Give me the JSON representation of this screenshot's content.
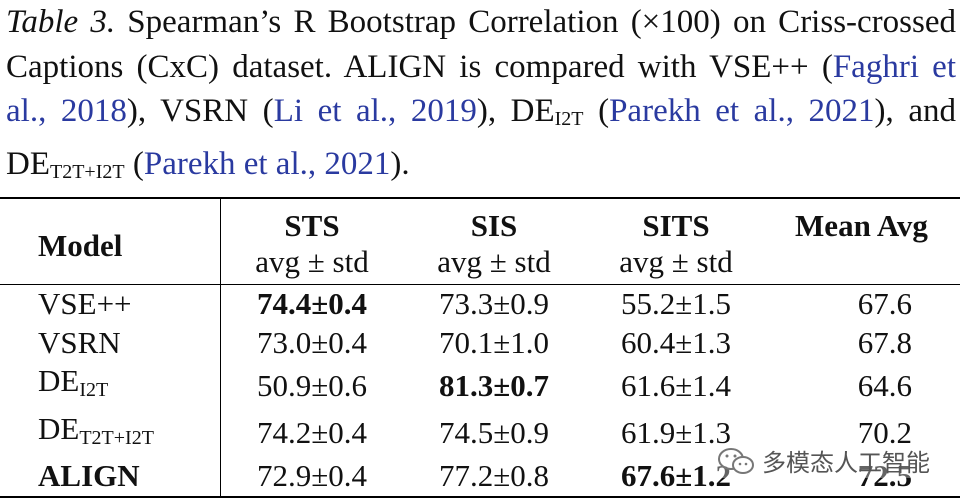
{
  "caption": {
    "label": "Table 3.",
    "text1": " Spearman’s R Bootstrap Correlation (×100) on Criss-crossed Captions (CxC) dataset.  ALIGN is compared with VSE++ (",
    "cite1": "Faghri et al., 2018",
    "text2": "), VSRN (",
    "cite2": "Li et al., 2019",
    "text3": "), DE",
    "sub1": "I2T",
    "text4": " (",
    "cite3": "Parekh et al., 2021",
    "text5": "), and DE",
    "sub2": "T2T+I2T",
    "text6": " (",
    "cite4": "Parekh et al., 2021",
    "text7": ")."
  },
  "table": {
    "headers": {
      "model": "Model",
      "sts": "STS",
      "sis": "SIS",
      "sits": "SITS",
      "mean": "Mean Avg",
      "sub": "avg ± std"
    },
    "rows": [
      {
        "model": "VSE++",
        "model_sub": "",
        "sts": "74.4±0.4",
        "sis": "73.3±0.9",
        "sits": "55.2±1.5",
        "mean": "67.6"
      },
      {
        "model": "VSRN",
        "model_sub": "",
        "sts": "73.0±0.4",
        "sis": "70.1±1.0",
        "sits": "60.4±1.3",
        "mean": "67.8"
      },
      {
        "model": "DE",
        "model_sub": "I2T",
        "sts": "50.9±0.6",
        "sis": "81.3±0.7",
        "sits": "61.6±1.4",
        "mean": "64.6"
      },
      {
        "model": "DE",
        "model_sub": "T2T+I2T",
        "sts": "74.2±0.4",
        "sis": "74.5±0.9",
        "sits": "61.9±1.3",
        "mean": "70.2"
      },
      {
        "model": "ALIGN",
        "model_sub": "",
        "sts": "72.9±0.4",
        "sis": "77.2±0.8",
        "sits": "67.6±1.2",
        "mean": "72.5"
      }
    ]
  },
  "watermark": {
    "text": "多模态人工智能"
  }
}
